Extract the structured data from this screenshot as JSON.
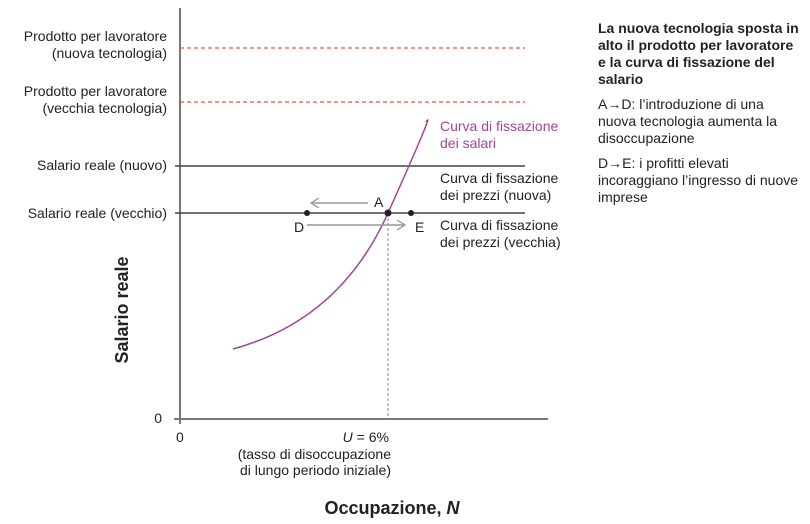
{
  "diagram": {
    "y_axis_label": "Salario reale",
    "x_axis_label": "Occupazione, ",
    "x_axis_label_var": "N",
    "y_origin": "0",
    "x_origin": "0",
    "u_label_var": "U",
    "u_label_value": " = 6%",
    "u_note_line1": "(tasso di disoccupazione",
    "u_note_line2": "di lungo periodo iniziale)",
    "left_labels": {
      "prod_new_1": "Prodotto per lavoratore",
      "prod_new_2": "(nuova tecnologia)",
      "prod_old_1": "Prodotto per lavoratore",
      "prod_old_2": "(vecchia tecnologia)",
      "wage_new": "Salario reale (nuovo)",
      "wage_old": "Salario reale (vecchio)"
    },
    "curve_labels": {
      "wage_setting_1": "Curva di fissazione",
      "wage_setting_2": "dei salari",
      "price_new_1": "Curva di fissazione",
      "price_new_2": "dei prezzi (nuova)",
      "price_old_1": "Curva di fissazione",
      "price_old_2": "dei prezzi (vecchia)"
    },
    "points": {
      "A": "A",
      "D": "D",
      "E": "E"
    },
    "colors": {
      "wage_curve": "#a3449a",
      "dashed": "#e05a3a",
      "axis": "#777777",
      "arrow": "#999999"
    }
  },
  "panel": {
    "title": "La nuova tecnologia sposta in alto il prodotto per lavoratore e la curva di fissazione del salario",
    "step1": "A→D: l’introduzione di una nuova tecnologia aumenta la disoccupazione",
    "step2": "D→E: i profitti elevati incoraggiano l’ingresso di nuove imprese"
  }
}
